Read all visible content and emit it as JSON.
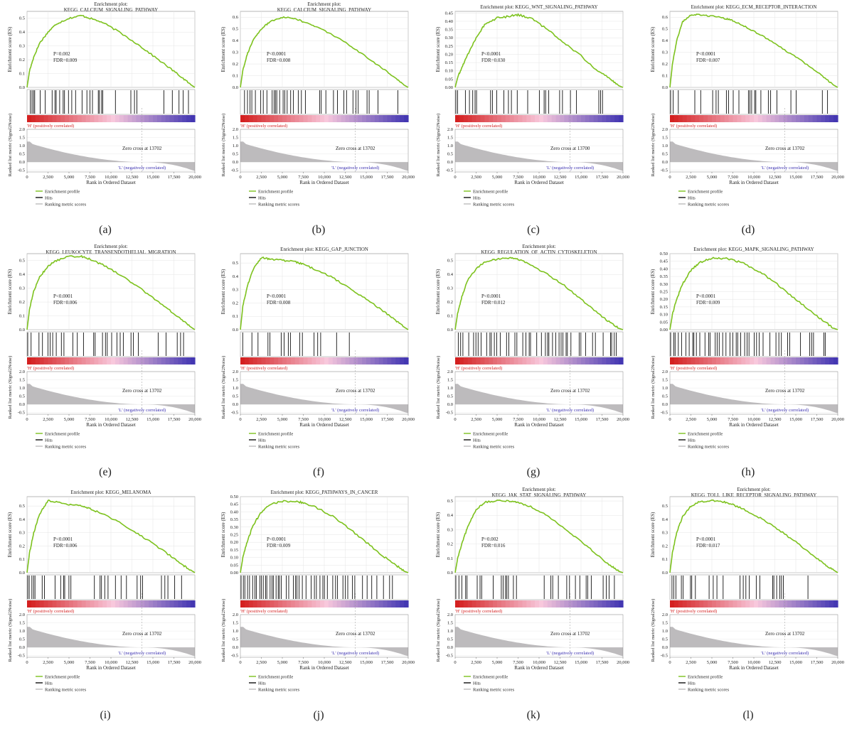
{
  "figure": {
    "shared": {
      "es_ylabel": "Enrichment score (ES)",
      "rank_ylabel": "Ranked list metric (Signal2Noise)",
      "xlabel": "Rank in Ordered Dataset",
      "h_label": "'H' (positively correlated)",
      "l_label": "'L' (negatively correlated)",
      "legend": [
        "Enrichment profile",
        "Hits",
        "Ranking metric scores"
      ],
      "x_ticks": [
        "0",
        "2,500",
        "5,000",
        "7,500",
        "10,000",
        "12,500",
        "15,000",
        "17,500",
        "20,000"
      ],
      "rank_ticks": [
        "2.0",
        "1.5",
        "1.0",
        "0.5",
        "0.0",
        "-0.5"
      ]
    },
    "colors": {
      "enrichment": "#7dc21e",
      "hits": "#111111",
      "ranking": "#bdbbbd",
      "positive": "#d42020",
      "negative": "#3a2fb0",
      "grid": "#e4e4e4"
    }
  },
  "chart_data": [
    {
      "panel": "(a)",
      "type": "line",
      "title": "Enrichment plot:\nKEGG_CALCIUM_SIGNALING_PATHWAY",
      "xlabel": "Rank in Ordered Dataset",
      "ylabel": "Enrichment score (ES)",
      "xlim": [
        0,
        20000
      ],
      "y_ticks": [
        "0.5",
        "0.4",
        "0.3",
        "0.2",
        "0.1",
        "0.0"
      ],
      "ylim": [
        0,
        0.55
      ],
      "stats": [
        "P=0.002",
        "FDR=0.009"
      ],
      "zero_cross": "Zero cross at 13702",
      "series": [
        {
          "x": [
            0,
            300,
            800,
            1500,
            2500,
            3500,
            5000,
            6500,
            7500,
            9000,
            11000,
            13000,
            15000,
            17000,
            18500,
            19500,
            20000
          ],
          "y": [
            0,
            0.12,
            0.22,
            0.32,
            0.4,
            0.46,
            0.5,
            0.52,
            0.5,
            0.47,
            0.4,
            0.32,
            0.23,
            0.14,
            0.07,
            0.02,
            0
          ]
        }
      ],
      "hits": {
        "density": 0.6,
        "end": 19500
      }
    },
    {
      "panel": "(b)",
      "type": "line",
      "title": "Enrichment plot:\nKEGG_CALCIUM_SIGNALING_PATHWAY",
      "xlabel": "Rank in Ordered Dataset",
      "ylabel": "Enrichment score (ES)",
      "xlim": [
        0,
        20000
      ],
      "y_ticks": [
        "0.6",
        "0.5",
        "0.4",
        "0.3",
        "0.2",
        "0.1",
        "0.0"
      ],
      "ylim": [
        0,
        0.65
      ],
      "stats": [
        "P<0.0001",
        "FDR=0.008"
      ],
      "zero_cross": "Zero cross at 13702",
      "series": [
        {
          "x": [
            0,
            300,
            800,
            1500,
            2500,
            3500,
            5000,
            6500,
            7500,
            9000,
            11000,
            13000,
            15000,
            17000,
            18500,
            19500,
            20000
          ],
          "y": [
            0,
            0.15,
            0.28,
            0.4,
            0.5,
            0.56,
            0.6,
            0.59,
            0.56,
            0.52,
            0.45,
            0.36,
            0.26,
            0.16,
            0.08,
            0.02,
            0
          ]
        }
      ],
      "hits": {
        "density": 0.65,
        "end": 19500
      }
    },
    {
      "panel": "(c)",
      "type": "line",
      "title": "Enrichment plot: KEGG_WNT_SIGNALING_PATHWAY",
      "xlabel": "Rank in Ordered Dataset",
      "ylabel": "Enrichment score (ES)",
      "xlim": [
        0,
        20000
      ],
      "y_ticks": [
        "0.45",
        "0.40",
        "0.35",
        "0.30",
        "0.25",
        "0.20",
        "0.15",
        "0.10",
        "0.05",
        "0.00"
      ],
      "ylim": [
        0,
        0.46
      ],
      "stats": [
        "P<0.0001",
        "FDR=0.030"
      ],
      "zero_cross": "Zero cross at 13700",
      "series": [
        {
          "x": [
            0,
            300,
            800,
            1500,
            2500,
            3500,
            5000,
            6500,
            7500,
            9000,
            11000,
            13000,
            15000,
            17000,
            18500,
            19500,
            20000
          ],
          "y": [
            0,
            0.06,
            0.12,
            0.2,
            0.3,
            0.38,
            0.42,
            0.43,
            0.44,
            0.42,
            0.35,
            0.27,
            0.19,
            0.1,
            0.05,
            0.01,
            0
          ]
        }
      ],
      "hits": {
        "density": 0.55,
        "end": 19000
      }
    },
    {
      "panel": "(d)",
      "type": "line",
      "title": "Enrichment plot: KEGG_ECM_RECEPTOR_INTERACTION",
      "xlabel": "Rank in Ordered Dataset",
      "ylabel": "Enrichment score (ES)",
      "xlim": [
        0,
        20000
      ],
      "y_ticks": [
        "0.6",
        "0.5",
        "0.4",
        "0.3",
        "0.2",
        "0.1",
        "0.0"
      ],
      "ylim": [
        0,
        0.65
      ],
      "stats": [
        "P<0.0001",
        "FDR=0.007"
      ],
      "zero_cross": "Zero cross at 13702",
      "series": [
        {
          "x": [
            0,
            300,
            800,
            1500,
            2500,
            3500,
            5000,
            6500,
            7500,
            9000,
            11000,
            13000,
            15000,
            17000,
            18500,
            19500,
            20000
          ],
          "y": [
            0,
            0.2,
            0.4,
            0.56,
            0.62,
            0.62,
            0.61,
            0.59,
            0.57,
            0.52,
            0.44,
            0.35,
            0.26,
            0.16,
            0.08,
            0.02,
            0
          ]
        }
      ],
      "hits": {
        "density": 0.4,
        "end": 19500
      }
    },
    {
      "panel": "(e)",
      "type": "line",
      "title": "Enrichment plot:\nKEGG_LEUKOCYTE_TRANSENDOTHELIAL_MIGRATION",
      "xlabel": "Rank in Ordered Dataset",
      "ylabel": "Enrichment score (ES)",
      "xlim": [
        0,
        20000
      ],
      "y_ticks": [
        "0.5",
        "0.4",
        "0.3",
        "0.2",
        "0.1",
        "0.0"
      ],
      "ylim": [
        0,
        0.55
      ],
      "stats": [
        "P<0.0001",
        "FDR=0.006"
      ],
      "zero_cross": "Zero cross at 13702",
      "series": [
        {
          "x": [
            0,
            300,
            800,
            1500,
            2500,
            3500,
            5000,
            6500,
            7500,
            9000,
            11000,
            13000,
            15000,
            17000,
            18500,
            19500,
            20000
          ],
          "y": [
            0,
            0.15,
            0.28,
            0.38,
            0.46,
            0.5,
            0.53,
            0.53,
            0.51,
            0.47,
            0.4,
            0.32,
            0.23,
            0.14,
            0.07,
            0.02,
            0
          ]
        }
      ],
      "hits": {
        "density": 0.5,
        "end": 19500
      }
    },
    {
      "panel": "(f)",
      "type": "line",
      "title": "Enrichment plot: KEGG_GAP_JUNCTION",
      "xlabel": "Rank in Ordered Dataset",
      "ylabel": "Enrichment score (ES)",
      "xlim": [
        0,
        20000
      ],
      "y_ticks": [
        "0.5",
        "0.4",
        "0.3",
        "0.2",
        "0.1",
        "0.0"
      ],
      "ylim": [
        0,
        0.57
      ],
      "stats": [
        "P<0.0001",
        "FDR=0.008"
      ],
      "zero_cross": "Zero cross at 13702",
      "series": [
        {
          "x": [
            0,
            300,
            800,
            1500,
            2500,
            3500,
            5000,
            6500,
            7500,
            9000,
            11000,
            13000,
            15000,
            17000,
            18500,
            19500,
            20000
          ],
          "y": [
            0,
            0.18,
            0.32,
            0.45,
            0.54,
            0.53,
            0.52,
            0.51,
            0.49,
            0.45,
            0.39,
            0.31,
            0.23,
            0.14,
            0.07,
            0.02,
            0
          ]
        }
      ],
      "hits": {
        "density": 0.45,
        "end": 19500
      }
    },
    {
      "panel": "(g)",
      "type": "line",
      "title": "Enrichment plot:\nKEGG_REGULATION_OF_ACTIN_CYTOSKELETON",
      "xlabel": "Rank in Ordered Dataset",
      "ylabel": "Enrichment score (ES)",
      "xlim": [
        0,
        20000
      ],
      "y_ticks": [
        "0.5",
        "0.4",
        "0.3",
        "0.2",
        "0.1",
        "0.0"
      ],
      "ylim": [
        0,
        0.55
      ],
      "stats": [
        "P<0.0001",
        "FDR=0.012"
      ],
      "zero_cross": "Zero cross at 13702",
      "series": [
        {
          "x": [
            0,
            300,
            800,
            1500,
            2500,
            3500,
            5000,
            6500,
            7500,
            9000,
            11000,
            13000,
            15000,
            17000,
            18500,
            19500,
            20000
          ],
          "y": [
            0,
            0.12,
            0.24,
            0.36,
            0.44,
            0.49,
            0.51,
            0.52,
            0.51,
            0.47,
            0.4,
            0.32,
            0.22,
            0.12,
            0.05,
            0.01,
            0
          ]
        }
      ],
      "hits": {
        "density": 0.8,
        "end": 19300
      }
    },
    {
      "panel": "(h)",
      "type": "line",
      "title": "Enrichment plot: KEGG_MAPK_SIGNALING_PATHWAY",
      "xlabel": "Rank in Ordered Dataset",
      "ylabel": "Enrichment score (ES)",
      "xlim": [
        0,
        20000
      ],
      "y_ticks": [
        "0.50",
        "0.45",
        "0.40",
        "0.35",
        "0.30",
        "0.25",
        "0.20",
        "0.15",
        "0.10",
        "0.05",
        "0.00"
      ],
      "ylim": [
        0,
        0.5
      ],
      "stats": [
        "P<0.0001",
        "FDR=0.009"
      ],
      "zero_cross": "Zero cross at 13702",
      "series": [
        {
          "x": [
            0,
            300,
            800,
            1500,
            2500,
            3500,
            5000,
            6500,
            7500,
            9000,
            11000,
            13000,
            15000,
            17000,
            18500,
            19500,
            20000
          ],
          "y": [
            0,
            0.1,
            0.2,
            0.3,
            0.39,
            0.44,
            0.47,
            0.47,
            0.46,
            0.43,
            0.37,
            0.29,
            0.2,
            0.11,
            0.05,
            0.01,
            0
          ]
        }
      ],
      "hits": {
        "density": 0.9,
        "end": 19500
      }
    },
    {
      "panel": "(i)",
      "type": "line",
      "title": "Enrichment plot: KEGG_MELANOMA",
      "xlabel": "Rank in Ordered Dataset",
      "ylabel": "Enrichment score (ES)",
      "xlim": [
        0,
        20000
      ],
      "y_ticks": [
        "0.5",
        "0.4",
        "0.3",
        "0.2",
        "0.1",
        "0.0"
      ],
      "ylim": [
        0,
        0.57
      ],
      "stats": [
        "P<0.0001",
        "FDR=0.006"
      ],
      "zero_cross": "Zero cross at 13702",
      "series": [
        {
          "x": [
            0,
            300,
            800,
            1500,
            2500,
            3500,
            5000,
            6500,
            7500,
            9000,
            11000,
            13000,
            15000,
            17000,
            18500,
            19500,
            20000
          ],
          "y": [
            0,
            0.15,
            0.3,
            0.44,
            0.54,
            0.53,
            0.51,
            0.5,
            0.48,
            0.44,
            0.38,
            0.3,
            0.22,
            0.13,
            0.06,
            0.02,
            0
          ]
        }
      ],
      "hits": {
        "density": 0.45,
        "end": 19500
      }
    },
    {
      "panel": "(j)",
      "type": "line",
      "title": "Enrichment plot: KEGG_PATHWAYS_IN_CANCER",
      "xlabel": "Rank in Ordered Dataset",
      "ylabel": "Enrichment score (ES)",
      "xlim": [
        0,
        20000
      ],
      "y_ticks": [
        "0.50",
        "0.45",
        "0.40",
        "0.35",
        "0.30",
        "0.25",
        "0.20",
        "0.15",
        "0.10",
        "0.05",
        "0.00"
      ],
      "ylim": [
        0,
        0.5
      ],
      "stats": [
        "P<0.0001",
        "FDR=0.009"
      ],
      "zero_cross": "Zero cross at 13702",
      "series": [
        {
          "x": [
            0,
            300,
            800,
            1500,
            2500,
            3500,
            5000,
            6500,
            7500,
            9000,
            11000,
            13000,
            15000,
            17000,
            18500,
            19500,
            20000
          ],
          "y": [
            0,
            0.1,
            0.2,
            0.31,
            0.4,
            0.45,
            0.47,
            0.47,
            0.46,
            0.43,
            0.37,
            0.29,
            0.2,
            0.11,
            0.05,
            0.01,
            0
          ]
        }
      ],
      "hits": {
        "density": 0.95,
        "end": 19500
      }
    },
    {
      "panel": "(k)",
      "type": "line",
      "title": "Enrichment plot:\nKEGG_JAK_STAT_SIGNALING_PATHWAY",
      "xlabel": "Rank in Ordered Dataset",
      "ylabel": "Enrichment score (ES)",
      "xlim": [
        0,
        20000
      ],
      "y_ticks": [
        "0.5",
        "0.4",
        "0.3",
        "0.2",
        "0.1",
        "0.0"
      ],
      "ylim": [
        0,
        0.53
      ],
      "stats": [
        "P=0.002",
        "FDR=0.016"
      ],
      "zero_cross": "Zero cross at 13702",
      "series": [
        {
          "x": [
            0,
            300,
            800,
            1500,
            2500,
            3500,
            5000,
            6500,
            7500,
            9000,
            11000,
            13000,
            15000,
            17000,
            18500,
            19500,
            20000
          ],
          "y": [
            0,
            0.1,
            0.2,
            0.32,
            0.44,
            0.49,
            0.5,
            0.5,
            0.49,
            0.46,
            0.4,
            0.31,
            0.22,
            0.12,
            0.05,
            0.01,
            0
          ]
        }
      ],
      "hits": {
        "density": 0.6,
        "end": 19500
      }
    },
    {
      "panel": "(l)",
      "type": "line",
      "title": "Enrichment plot:\nKEGG_TOLL_LIKE_RECEPTOR_SIGNALING_PATHWAY",
      "xlabel": "Rank in Ordered Dataset",
      "ylabel": "Enrichment score (ES)",
      "xlim": [
        0,
        20000
      ],
      "y_ticks": [
        "0.5",
        "0.4",
        "0.3",
        "0.2",
        "0.1",
        "0.0"
      ],
      "ylim": [
        0,
        0.57
      ],
      "stats": [
        "P<0.0001",
        "FDR=0.017"
      ],
      "zero_cross": "Zero cross at 13702",
      "series": [
        {
          "x": [
            0,
            300,
            800,
            1500,
            2500,
            3500,
            5000,
            6500,
            7500,
            9000,
            11000,
            13000,
            15000,
            17000,
            18500,
            19500,
            20000
          ],
          "y": [
            0,
            0.15,
            0.3,
            0.42,
            0.5,
            0.53,
            0.54,
            0.53,
            0.51,
            0.47,
            0.4,
            0.32,
            0.23,
            0.13,
            0.06,
            0.02,
            0
          ]
        }
      ],
      "hits": {
        "density": 0.55,
        "end": 19500
      }
    }
  ]
}
